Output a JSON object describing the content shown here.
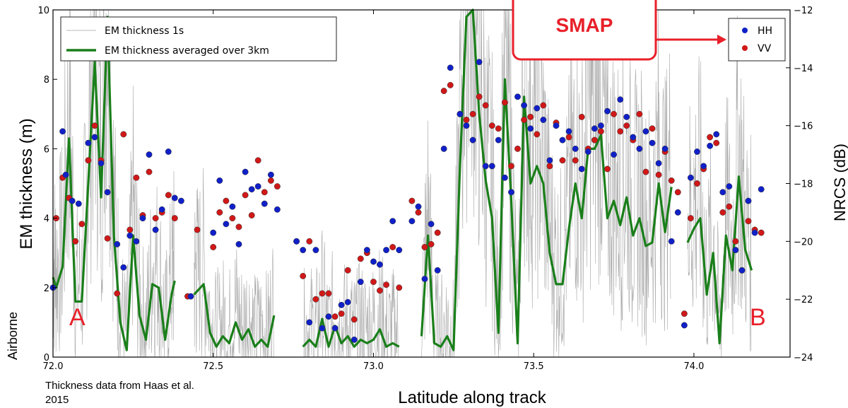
{
  "chart_data": {
    "type": "line+scatter",
    "xlabel": "Latitude along track",
    "ylabel_left": "EM thickness (m)",
    "ylabel_right": "NRCS (dB)",
    "side_label": "Airborne",
    "credit": "Thickness data from Haas et al. 2015",
    "xlim": [
      72.0,
      74.3
    ],
    "ylim_left": [
      0,
      10
    ],
    "ylim_right": [
      -24,
      -12
    ],
    "x_ticks": [
      72.0,
      72.5,
      73.0,
      73.5,
      74.0
    ],
    "x_tick_labels": [
      "72.0",
      "72.5",
      "73.0",
      "73.5",
      "74.0"
    ],
    "y_left_ticks": [
      0,
      2,
      4,
      6,
      8,
      10
    ],
    "y_left_tick_labels": [
      "0",
      "2",
      "4",
      "6",
      "8",
      "10"
    ],
    "y_right_ticks": [
      -24,
      -22,
      -20,
      -18,
      -16,
      -14,
      -12
    ],
    "y_right_tick_labels": [
      "−24",
      "−22",
      "−20",
      "−18",
      "−16",
      "−14",
      "−12"
    ],
    "grid": false,
    "legend_left": {
      "position": "top-left",
      "entries": [
        "EM thickness 1s",
        "EM thickness averaged over 3km"
      ]
    },
    "legend_right": {
      "position": "top-right",
      "entries": [
        "HH",
        "VV"
      ]
    },
    "callout": {
      "text": "SMAP",
      "color": "#e8202a",
      "points_to": "legend-right"
    },
    "endpoint_labels": [
      {
        "text": "A",
        "x": 72.04,
        "y": 0.8
      },
      {
        "text": "B",
        "x": 74.17,
        "y": 0.8
      }
    ],
    "colors": {
      "em_1s": "#9a9a9a",
      "em_avg": "#1a7f1a",
      "hh": "#1020c8",
      "vv": "#d01818",
      "callout": "#e8202a",
      "endpoint_labels": "#e8202a"
    },
    "series": [
      {
        "name": "EM thickness averaged over 3km",
        "axis": "left",
        "x": [
          72.0,
          72.01,
          72.03,
          72.05,
          72.07,
          72.09,
          72.11,
          72.13,
          72.15,
          72.17,
          72.19,
          72.21,
          72.23,
          72.25,
          72.27,
          72.29,
          72.31,
          72.33,
          72.35,
          72.37,
          72.38
        ],
        "y": [
          2.3,
          2.0,
          2.6,
          6.3,
          1.6,
          1.6,
          5.0,
          8.5,
          4.6,
          9.8,
          3.5,
          1.0,
          0.2,
          3.5,
          1.2,
          0.5,
          2.1,
          2.0,
          0.5,
          1.8,
          2.2
        ],
        "segment_note": "first segment"
      },
      {
        "name": "EM thickness averaged over 3km",
        "axis": "left",
        "x": [
          72.44,
          72.45,
          72.47,
          72.49,
          72.51,
          72.53,
          72.55,
          72.57,
          72.59,
          72.61,
          72.63,
          72.65,
          72.67,
          72.69
        ],
        "y": [
          1.8,
          1.9,
          2.1,
          0.7,
          0.3,
          0.6,
          0.4,
          1.0,
          0.5,
          0.8,
          0.3,
          0.5,
          0.3,
          1.2
        ]
      },
      {
        "name": "EM thickness averaged over 3km",
        "axis": "left",
        "x": [
          72.78,
          72.8,
          72.82,
          72.84,
          72.86,
          72.88,
          72.9,
          72.92,
          72.94,
          72.96,
          72.98,
          73.0,
          73.02,
          73.04,
          73.06,
          73.08
        ],
        "y": [
          0.3,
          0.5,
          0.3,
          1.1,
          0.3,
          0.9,
          0.4,
          0.6,
          0.3,
          0.5,
          0.4,
          0.5,
          0.8,
          0.3,
          0.4,
          0.3
        ]
      },
      {
        "name": "EM thickness averaged over 3km",
        "axis": "left",
        "x": [
          73.15,
          73.17,
          73.19,
          73.21,
          73.23,
          73.25,
          73.27,
          73.29,
          73.31,
          73.33,
          73.35,
          73.37,
          73.39,
          73.41,
          73.43,
          73.45,
          73.47,
          73.49,
          73.51,
          73.53,
          73.55,
          73.57,
          73.59,
          73.61,
          73.63,
          73.65,
          73.67,
          73.69,
          73.71,
          73.73,
          73.75,
          73.77,
          73.79,
          73.81,
          73.83,
          73.85,
          73.87,
          73.89,
          73.91,
          73.93
        ],
        "y": [
          0.6,
          3.5,
          0.4,
          0.3,
          0.6,
          0.2,
          5.5,
          9.8,
          10.0,
          7.0,
          5.1,
          4.0,
          0.7,
          8.0,
          4.5,
          0.4,
          7.5,
          5.0,
          5.5,
          5.0,
          3.0,
          2.1,
          2.1,
          3.7,
          5.0,
          4.0,
          6.0,
          6.0,
          6.4,
          4.0,
          4.5,
          3.8,
          4.6,
          3.5,
          4.0,
          3.2,
          3.3,
          5.0,
          3.6,
          4.9
        ]
      },
      {
        "name": "EM thickness averaged over 3km",
        "axis": "left",
        "x": [
          73.98,
          74.0,
          74.02,
          74.04,
          74.06,
          74.08,
          74.1,
          74.12,
          74.14,
          74.16,
          74.18
        ],
        "y": [
          3.3,
          3.7,
          4.0,
          1.8,
          3.0,
          0.4,
          3.5,
          2.5,
          5.2,
          3.1,
          2.5
        ]
      },
      {
        "name": "HH",
        "axis": "right",
        "x": [
          72.0,
          72.03,
          72.04,
          72.06,
          72.08,
          72.11,
          72.13,
          72.15,
          72.17,
          72.2,
          72.22,
          72.24,
          72.26,
          72.28,
          72.3,
          72.32,
          72.34,
          72.36,
          72.38,
          72.4,
          72.43,
          72.5,
          72.52,
          72.54,
          72.56,
          72.58,
          72.6,
          72.62,
          72.64,
          72.66,
          72.68,
          72.7,
          72.76,
          72.78,
          72.8,
          72.82,
          72.84,
          72.86,
          72.88,
          72.9,
          72.92,
          72.94,
          72.96,
          72.98,
          73.0,
          73.02,
          73.04,
          73.06,
          73.08,
          73.12,
          73.14,
          73.16,
          73.18,
          73.2,
          73.22,
          73.24,
          73.27,
          73.29,
          73.31,
          73.33,
          73.35,
          73.37,
          73.39,
          73.41,
          73.43,
          73.45,
          73.47,
          73.49,
          73.51,
          73.53,
          73.55,
          73.57,
          73.59,
          73.61,
          73.63,
          73.65,
          73.67,
          73.69,
          73.71,
          73.73,
          73.75,
          73.77,
          73.79,
          73.81,
          73.83,
          73.85,
          73.87,
          73.89,
          73.91,
          73.93,
          73.95,
          73.97,
          73.99,
          74.01,
          74.03,
          74.05,
          74.07,
          74.09,
          74.11,
          74.13,
          74.15,
          74.17,
          74.19,
          74.21
        ],
        "y": [
          -21.6,
          -16.2,
          -17.7,
          -18.6,
          -18.7,
          -16.6,
          -16.4,
          -17.3,
          -18.3,
          -20.1,
          -20.9,
          -19.8,
          -20.0,
          -19.2,
          -17.0,
          -19.6,
          -18.9,
          -16.9,
          -18.5,
          -18.6,
          -21.9,
          -19.7,
          -17.9,
          -19.4,
          -18.8,
          -20.1,
          -17.6,
          -18.2,
          -18.1,
          -18.7,
          -17.7,
          -18.9,
          -20.0,
          -20.3,
          -22.8,
          -20.3,
          -23.0,
          -22.6,
          -23.0,
          -22.2,
          -22.1,
          -23.4,
          -21.4,
          -20.3,
          -20.7,
          -20.8,
          -20.3,
          -19.3,
          -20.3,
          -19.3,
          -18.8,
          -21.3,
          -19.4,
          -21.0,
          -16.8,
          -14.0,
          -15.6,
          -16.0,
          -16.5,
          -13.8,
          -17.4,
          -17.4,
          -16.5,
          -17.8,
          -18.3,
          -15.0,
          -15.3,
          -16.1,
          -15.4,
          -15.8,
          -17.2,
          -16.0,
          -16.5,
          -16.2,
          -16.8,
          -17.5,
          -16.9,
          -16.1,
          -16.0,
          -15.5,
          -17.0,
          -15.1,
          -15.7,
          -16.4,
          -16.8,
          -16.2,
          -16.6,
          -17.3,
          -16.8,
          -20.0,
          -19.0,
          -22.9,
          -17.8,
          -16.9,
          -17.4,
          -16.7,
          -16.3,
          -18.3,
          -18.1,
          -20.3,
          -21.0,
          -18.6,
          -19.7,
          -18.2
        ],
        "note": "approximate readings from the scatter"
      },
      {
        "name": "VV",
        "axis": "right",
        "x": [
          72.01,
          72.03,
          72.05,
          72.07,
          72.09,
          72.11,
          72.13,
          72.15,
          72.17,
          72.2,
          72.22,
          72.24,
          72.26,
          72.28,
          72.3,
          72.32,
          72.34,
          72.36,
          72.38,
          72.42,
          72.45,
          72.5,
          72.52,
          72.54,
          72.56,
          72.58,
          72.6,
          72.62,
          72.64,
          72.66,
          72.68,
          72.7,
          72.76,
          72.78,
          72.8,
          72.82,
          72.84,
          72.86,
          72.88,
          72.9,
          72.92,
          72.94,
          72.96,
          72.98,
          73.0,
          73.02,
          73.04,
          73.06,
          73.08,
          73.12,
          73.14,
          73.16,
          73.18,
          73.2,
          73.22,
          73.24,
          73.27,
          73.29,
          73.31,
          73.33,
          73.35,
          73.37,
          73.39,
          73.41,
          73.43,
          73.45,
          73.47,
          73.49,
          73.51,
          73.53,
          73.55,
          73.57,
          73.59,
          73.61,
          73.63,
          73.65,
          73.67,
          73.69,
          73.71,
          73.73,
          73.75,
          73.77,
          73.79,
          73.81,
          73.83,
          73.85,
          73.87,
          73.89,
          73.91,
          73.93,
          73.95,
          73.97,
          73.99,
          74.01,
          74.03,
          74.05,
          74.07,
          74.09,
          74.11,
          74.13,
          74.15,
          74.17,
          74.19,
          74.21
        ],
        "y": [
          -19.2,
          -17.8,
          -18.5,
          -20.0,
          -19.4,
          -17.2,
          -16.0,
          -17.2,
          -19.9,
          -21.8,
          -16.3,
          -19.6,
          -17.8,
          -19.1,
          -17.6,
          -19.2,
          -19.0,
          -18.4,
          -19.2,
          -21.9,
          -19.6,
          -20.2,
          -19.0,
          -18.6,
          -19.2,
          -19.5,
          -18.4,
          -19.1,
          -17.2,
          -18.3,
          -17.9,
          -18.1,
          -20.0,
          -21.2,
          -20.0,
          -22.0,
          -21.8,
          -21.8,
          -22.6,
          -22.5,
          -21.0,
          -22.7,
          -20.6,
          -20.4,
          -21.4,
          -21.7,
          -21.5,
          -20.2,
          -21.6,
          -18.6,
          -19.0,
          -20.2,
          -20.1,
          -19.7,
          -14.8,
          -14.6,
          -15.6,
          -15.8,
          -15.6,
          -15.0,
          -15.3,
          -16.0,
          -16.1,
          -15.2,
          -17.4,
          -16.8,
          -15.8,
          -15.7,
          -16.3,
          -15.3,
          -17.4,
          -15.9,
          -17.2,
          -16.4,
          -17.2,
          -15.7,
          -16.8,
          -16.5,
          -16.2,
          -17.5,
          -15.6,
          -16.2,
          -16.0,
          -16.5,
          -15.6,
          -17.6,
          -16.1,
          -17.7,
          -16.9,
          -17.9,
          -18.3,
          -22.5,
          -19.2,
          -18.0,
          -17.5,
          -16.4,
          -16.6,
          -19.0,
          -18.8,
          -20.0,
          -21.0,
          -19.3,
          -19.6,
          -19.7
        ],
        "note": "approximate readings from the scatter"
      }
    ]
  }
}
